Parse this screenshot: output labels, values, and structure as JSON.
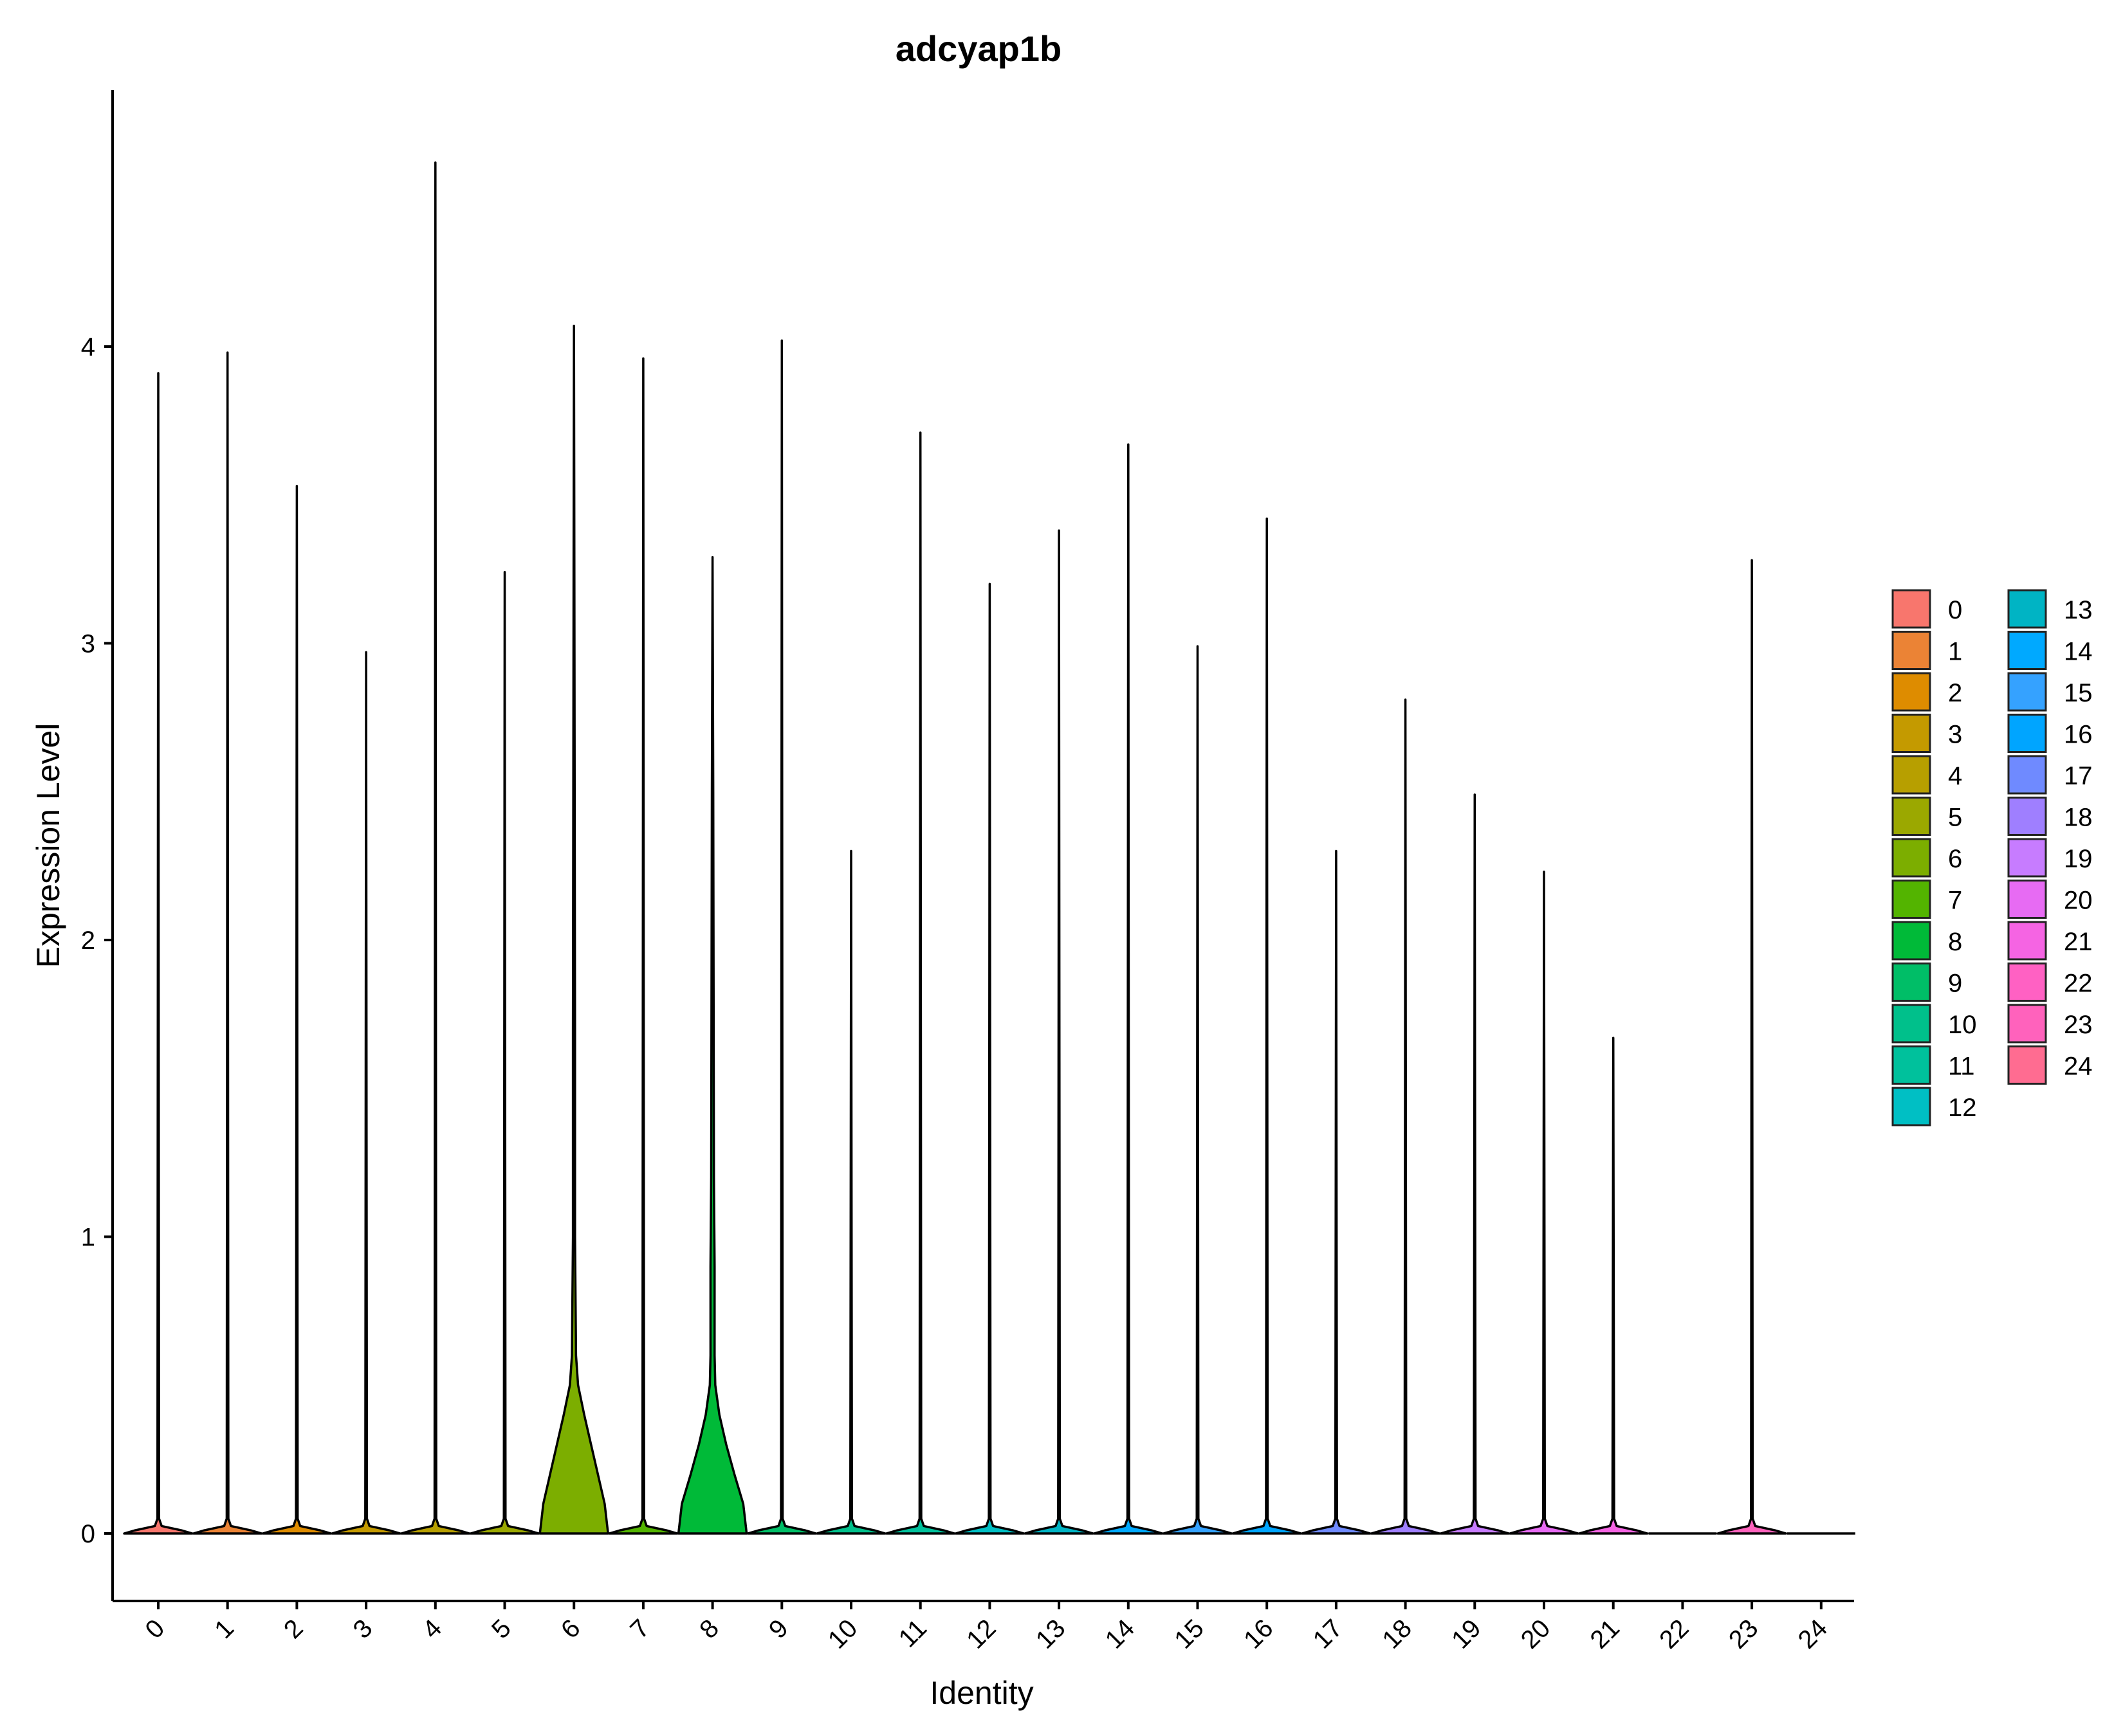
{
  "chart_data": {
    "type": "violin",
    "title": "adcyap1b",
    "xlabel": "Identity",
    "ylabel": "Expression Level",
    "ylim": [
      -0.23,
      4.86
    ],
    "yticks": [
      "0",
      "1",
      "2",
      "3",
      "4"
    ],
    "legend_position": "right",
    "grid": false,
    "categories": [
      "0",
      "1",
      "2",
      "3",
      "4",
      "5",
      "6",
      "7",
      "8",
      "9",
      "10",
      "11",
      "12",
      "13",
      "14",
      "15",
      "16",
      "17",
      "18",
      "19",
      "20",
      "21",
      "22",
      "23",
      "24"
    ],
    "max_values": [
      3.91,
      3.98,
      3.53,
      2.97,
      4.62,
      3.24,
      4.07,
      3.96,
      3.29,
      4.02,
      2.3,
      3.71,
      3.2,
      3.38,
      3.67,
      2.99,
      3.42,
      2.3,
      2.81,
      2.49,
      2.23,
      1.67,
      0.0,
      3.28,
      0.0
    ],
    "colors": [
      "#F8766D",
      "#EB8335",
      "#DE8C00",
      "#C49A00",
      "#B79F00",
      "#9BA800",
      "#7CAE00",
      "#53B400",
      "#00BA38",
      "#00BE67",
      "#00C08B",
      "#00C19C",
      "#00BFC4",
      "#00B4C4",
      "#00A9FF",
      "#35A2FF",
      "#00A5FF",
      "#6F8AFF",
      "#9F7FFF",
      "#C77CFF",
      "#E76BF3",
      "#F564E3",
      "#FF61C3",
      "#FF62BC",
      "#FF6C91"
    ],
    "violins": [
      {
        "category": "6",
        "profile": [
          [
            0.0,
            0.5
          ],
          [
            0.1,
            0.45
          ],
          [
            0.2,
            0.35
          ],
          [
            0.3,
            0.25
          ],
          [
            0.4,
            0.15
          ],
          [
            0.5,
            0.06
          ],
          [
            0.6,
            0.03
          ],
          [
            1.0,
            0.015
          ],
          [
            1.7,
            0.015
          ],
          [
            2.5,
            0.01
          ],
          [
            3.5,
            0.004
          ],
          [
            4.07,
            0.0
          ]
        ]
      },
      {
        "category": "8",
        "profile": [
          [
            0.0,
            0.5
          ],
          [
            0.1,
            0.45
          ],
          [
            0.2,
            0.32
          ],
          [
            0.3,
            0.2
          ],
          [
            0.4,
            0.1
          ],
          [
            0.5,
            0.04
          ],
          [
            0.6,
            0.03
          ],
          [
            0.9,
            0.03
          ],
          [
            1.2,
            0.02
          ],
          [
            2.5,
            0.01
          ],
          [
            3.29,
            0.0
          ]
        ]
      }
    ]
  }
}
